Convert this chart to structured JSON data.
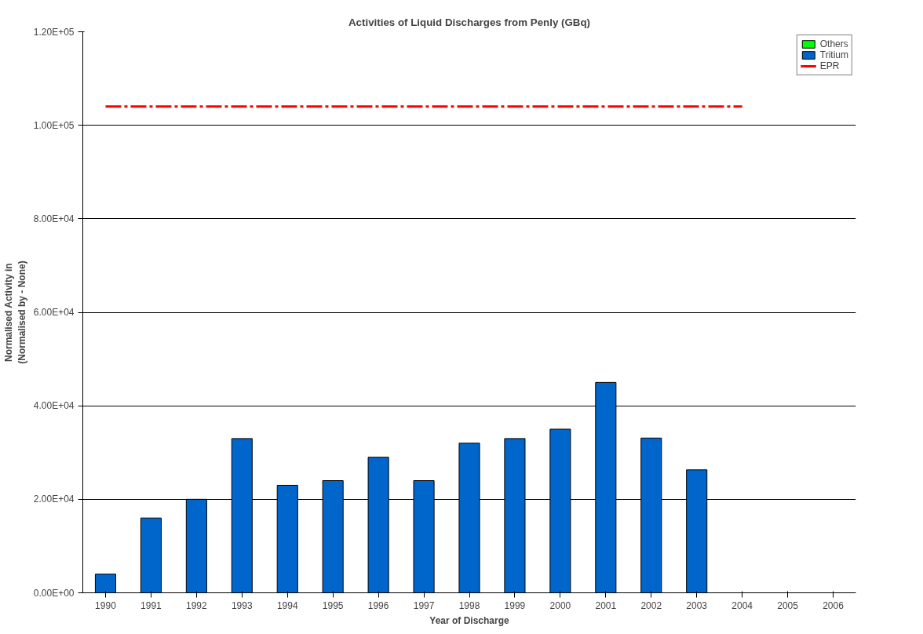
{
  "chart_data": {
    "type": "bar",
    "title": "Activities of Liquid Discharges from Penly (GBq)",
    "xlabel": "Year of Discharge",
    "ylabel": "Normalised Activity in\n(Normalised by - None)",
    "categories": [
      "1990",
      "1991",
      "1992",
      "1993",
      "1994",
      "1995",
      "1996",
      "1997",
      "1998",
      "1999",
      "2000",
      "2001",
      "2002",
      "2003",
      "2004",
      "2005",
      "2006"
    ],
    "series": [
      {
        "name": "Tritium",
        "color": "#0066cc",
        "values": [
          4000,
          16000,
          20000,
          33000,
          23000,
          24000,
          29000,
          24000,
          32000,
          33000,
          35000,
          45000,
          33100,
          26300,
          null,
          null,
          null
        ]
      },
      {
        "name": "Others",
        "color": "#00ff00",
        "values": [
          null,
          null,
          null,
          null,
          null,
          null,
          null,
          null,
          null,
          null,
          null,
          null,
          null,
          null,
          null,
          null,
          null
        ]
      },
      {
        "name": "EPR",
        "type": "line",
        "color": "#ff0000",
        "line_style": "dashed",
        "values": [
          104000,
          104000,
          104000,
          104000,
          104000,
          104000,
          104000,
          104000,
          104000,
          104000,
          104000,
          104000,
          104000,
          104000,
          104000,
          null,
          null
        ]
      }
    ],
    "ylim": [
      0,
      120000
    ],
    "yticks": [
      {
        "value": 0,
        "label": "0.00E+00"
      },
      {
        "value": 20000,
        "label": "2.00E+04"
      },
      {
        "value": 40000,
        "label": "4.00E+04"
      },
      {
        "value": 60000,
        "label": "6.00E+04"
      },
      {
        "value": 80000,
        "label": "8.00E+04"
      },
      {
        "value": 100000,
        "label": "1.00E+05"
      },
      {
        "value": 120000,
        "label": "1.20E+05"
      }
    ],
    "grid": "y",
    "legend": "top right"
  }
}
